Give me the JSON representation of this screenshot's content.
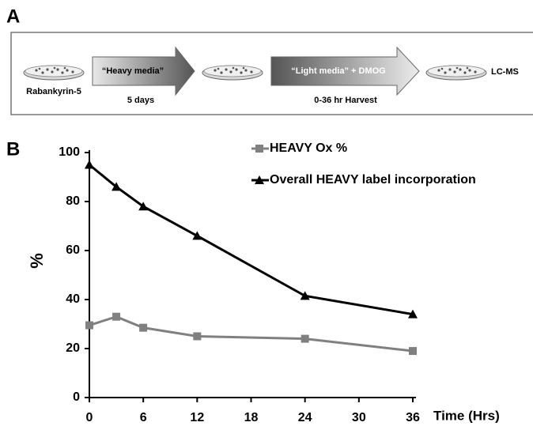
{
  "diagram": {
    "panel_label": "A",
    "start_label": "Rabankyrin-5",
    "step1": "“Heavy media”",
    "step1_note": "5 days",
    "step2": "“Light media” + DMOG",
    "step2_note": "0-36 hr Harvest",
    "end_label": "LC-MS"
  },
  "chart_data": {
    "type": "line",
    "panel_label": "B",
    "y_label": "%",
    "x_label": "Time (Hrs)",
    "x": [
      0,
      3,
      6,
      12,
      24,
      36
    ],
    "series": [
      {
        "name": "HEAVY Ox %",
        "color": "#808080",
        "marker": "square",
        "values": [
          29.5,
          33,
          28.5,
          25,
          24,
          19
        ]
      },
      {
        "name": "Overall HEAVY label incorporation",
        "color": "#000000",
        "marker": "triangle",
        "values": [
          95,
          86,
          78,
          66,
          41.5,
          34
        ]
      }
    ],
    "xlim": [
      0,
      36
    ],
    "xticks": [
      0,
      6,
      12,
      18,
      24,
      30,
      36
    ],
    "ylim": [
      0,
      100
    ],
    "yticks": [
      0,
      20,
      40,
      60,
      80,
      100
    ],
    "grid": false
  }
}
